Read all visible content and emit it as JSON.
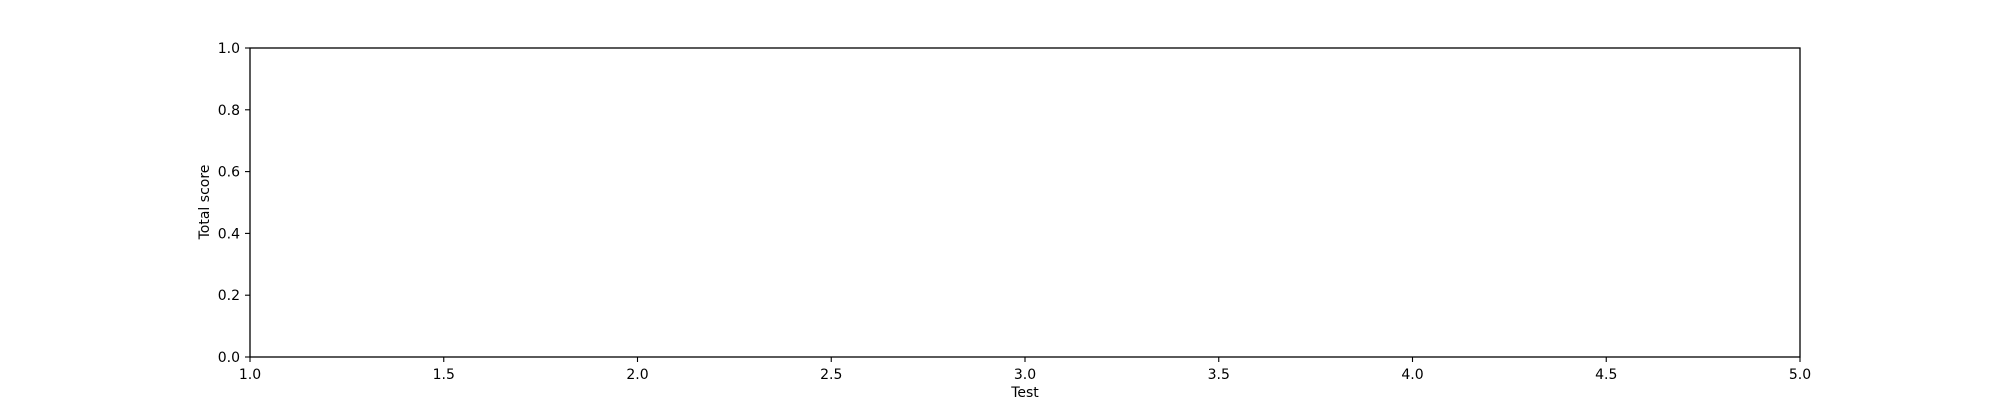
{
  "chart_data": {
    "type": "line",
    "title": "",
    "xlabel": "Test",
    "ylabel": "Total score",
    "xlim": [
      1.0,
      5.0
    ],
    "ylim": [
      0.0,
      1.0
    ],
    "xticks": [
      1.0,
      1.5,
      2.0,
      2.5,
      3.0,
      3.5,
      4.0,
      4.5,
      5.0
    ],
    "xtick_labels": [
      "1.0",
      "1.5",
      "2.0",
      "2.5",
      "3.0",
      "3.5",
      "4.0",
      "4.5",
      "5.0"
    ],
    "yticks": [
      0.0,
      0.2,
      0.4,
      0.6,
      0.8,
      1.0
    ],
    "ytick_labels": [
      "0.0",
      "0.2",
      "0.4",
      "0.6",
      "0.8",
      "1.0"
    ],
    "grid": false,
    "series": []
  }
}
